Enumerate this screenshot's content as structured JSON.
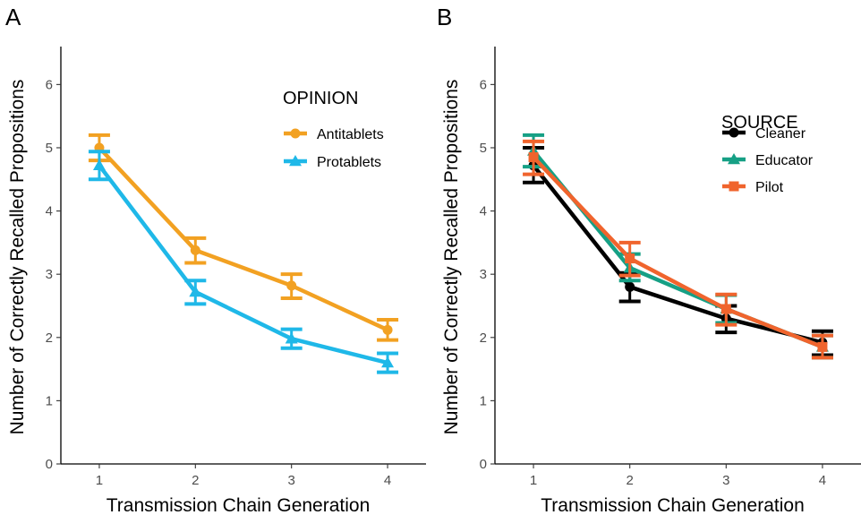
{
  "chart_data": [
    {
      "panel": "A",
      "type": "line",
      "xlabel": "Transmission Chain Generation",
      "ylabel": "Number of Correctly Recalled Propositions",
      "x": [
        1,
        2,
        3,
        4
      ],
      "x_ticks": [
        "1",
        "2",
        "3",
        "4"
      ],
      "y_ticks": [
        "0",
        "1",
        "2",
        "3",
        "4",
        "5",
        "6"
      ],
      "ylim": [
        0,
        6.6
      ],
      "xlim": [
        0.6,
        4.4
      ],
      "grid": false,
      "legend": {
        "title": "OPINION",
        "position": "top-right"
      },
      "series": [
        {
          "name": "Antitablets",
          "color": "#F2A122",
          "marker": "circle",
          "values": [
            5.0,
            3.38,
            2.82,
            2.12
          ],
          "lower": [
            4.8,
            3.18,
            2.62,
            1.96
          ],
          "upper": [
            5.2,
            3.57,
            3.0,
            2.28
          ]
        },
        {
          "name": "Protablets",
          "color": "#1FB8E8",
          "marker": "triangle",
          "values": [
            4.72,
            2.72,
            1.98,
            1.6
          ],
          "lower": [
            4.5,
            2.53,
            1.83,
            1.45
          ],
          "upper": [
            4.94,
            2.9,
            2.13,
            1.75
          ]
        }
      ]
    },
    {
      "panel": "B",
      "type": "line",
      "xlabel": "Transmission Chain Generation",
      "ylabel": "Number of Correctly Recalled Propositions",
      "x": [
        1,
        2,
        3,
        4
      ],
      "x_ticks": [
        "1",
        "2",
        "3",
        "4"
      ],
      "y_ticks": [
        "0",
        "1",
        "2",
        "3",
        "4",
        "5",
        "6"
      ],
      "ylim": [
        0,
        6.6
      ],
      "xlim": [
        0.6,
        4.4
      ],
      "grid": false,
      "legend": {
        "title": "SOURCE",
        "position": "top-right"
      },
      "series": [
        {
          "name": "Cleaner",
          "color": "#000000",
          "marker": "circle",
          "values": [
            4.72,
            2.8,
            2.3,
            1.92
          ],
          "lower": [
            4.45,
            2.57,
            2.08,
            1.72
          ],
          "upper": [
            5.0,
            3.02,
            2.5,
            2.1
          ]
        },
        {
          "name": "Educator",
          "color": "#16A085",
          "marker": "triangle",
          "values": [
            4.95,
            3.1,
            2.45,
            1.85
          ],
          "lower": [
            4.7,
            2.9,
            2.23,
            1.68
          ],
          "upper": [
            5.2,
            3.32,
            2.67,
            2.03
          ]
        },
        {
          "name": "Pilot",
          "color": "#F0642D",
          "marker": "square",
          "values": [
            4.85,
            3.25,
            2.45,
            1.85
          ],
          "lower": [
            4.58,
            2.98,
            2.2,
            1.68
          ],
          "upper": [
            5.1,
            3.5,
            2.68,
            2.03
          ]
        }
      ]
    }
  ]
}
